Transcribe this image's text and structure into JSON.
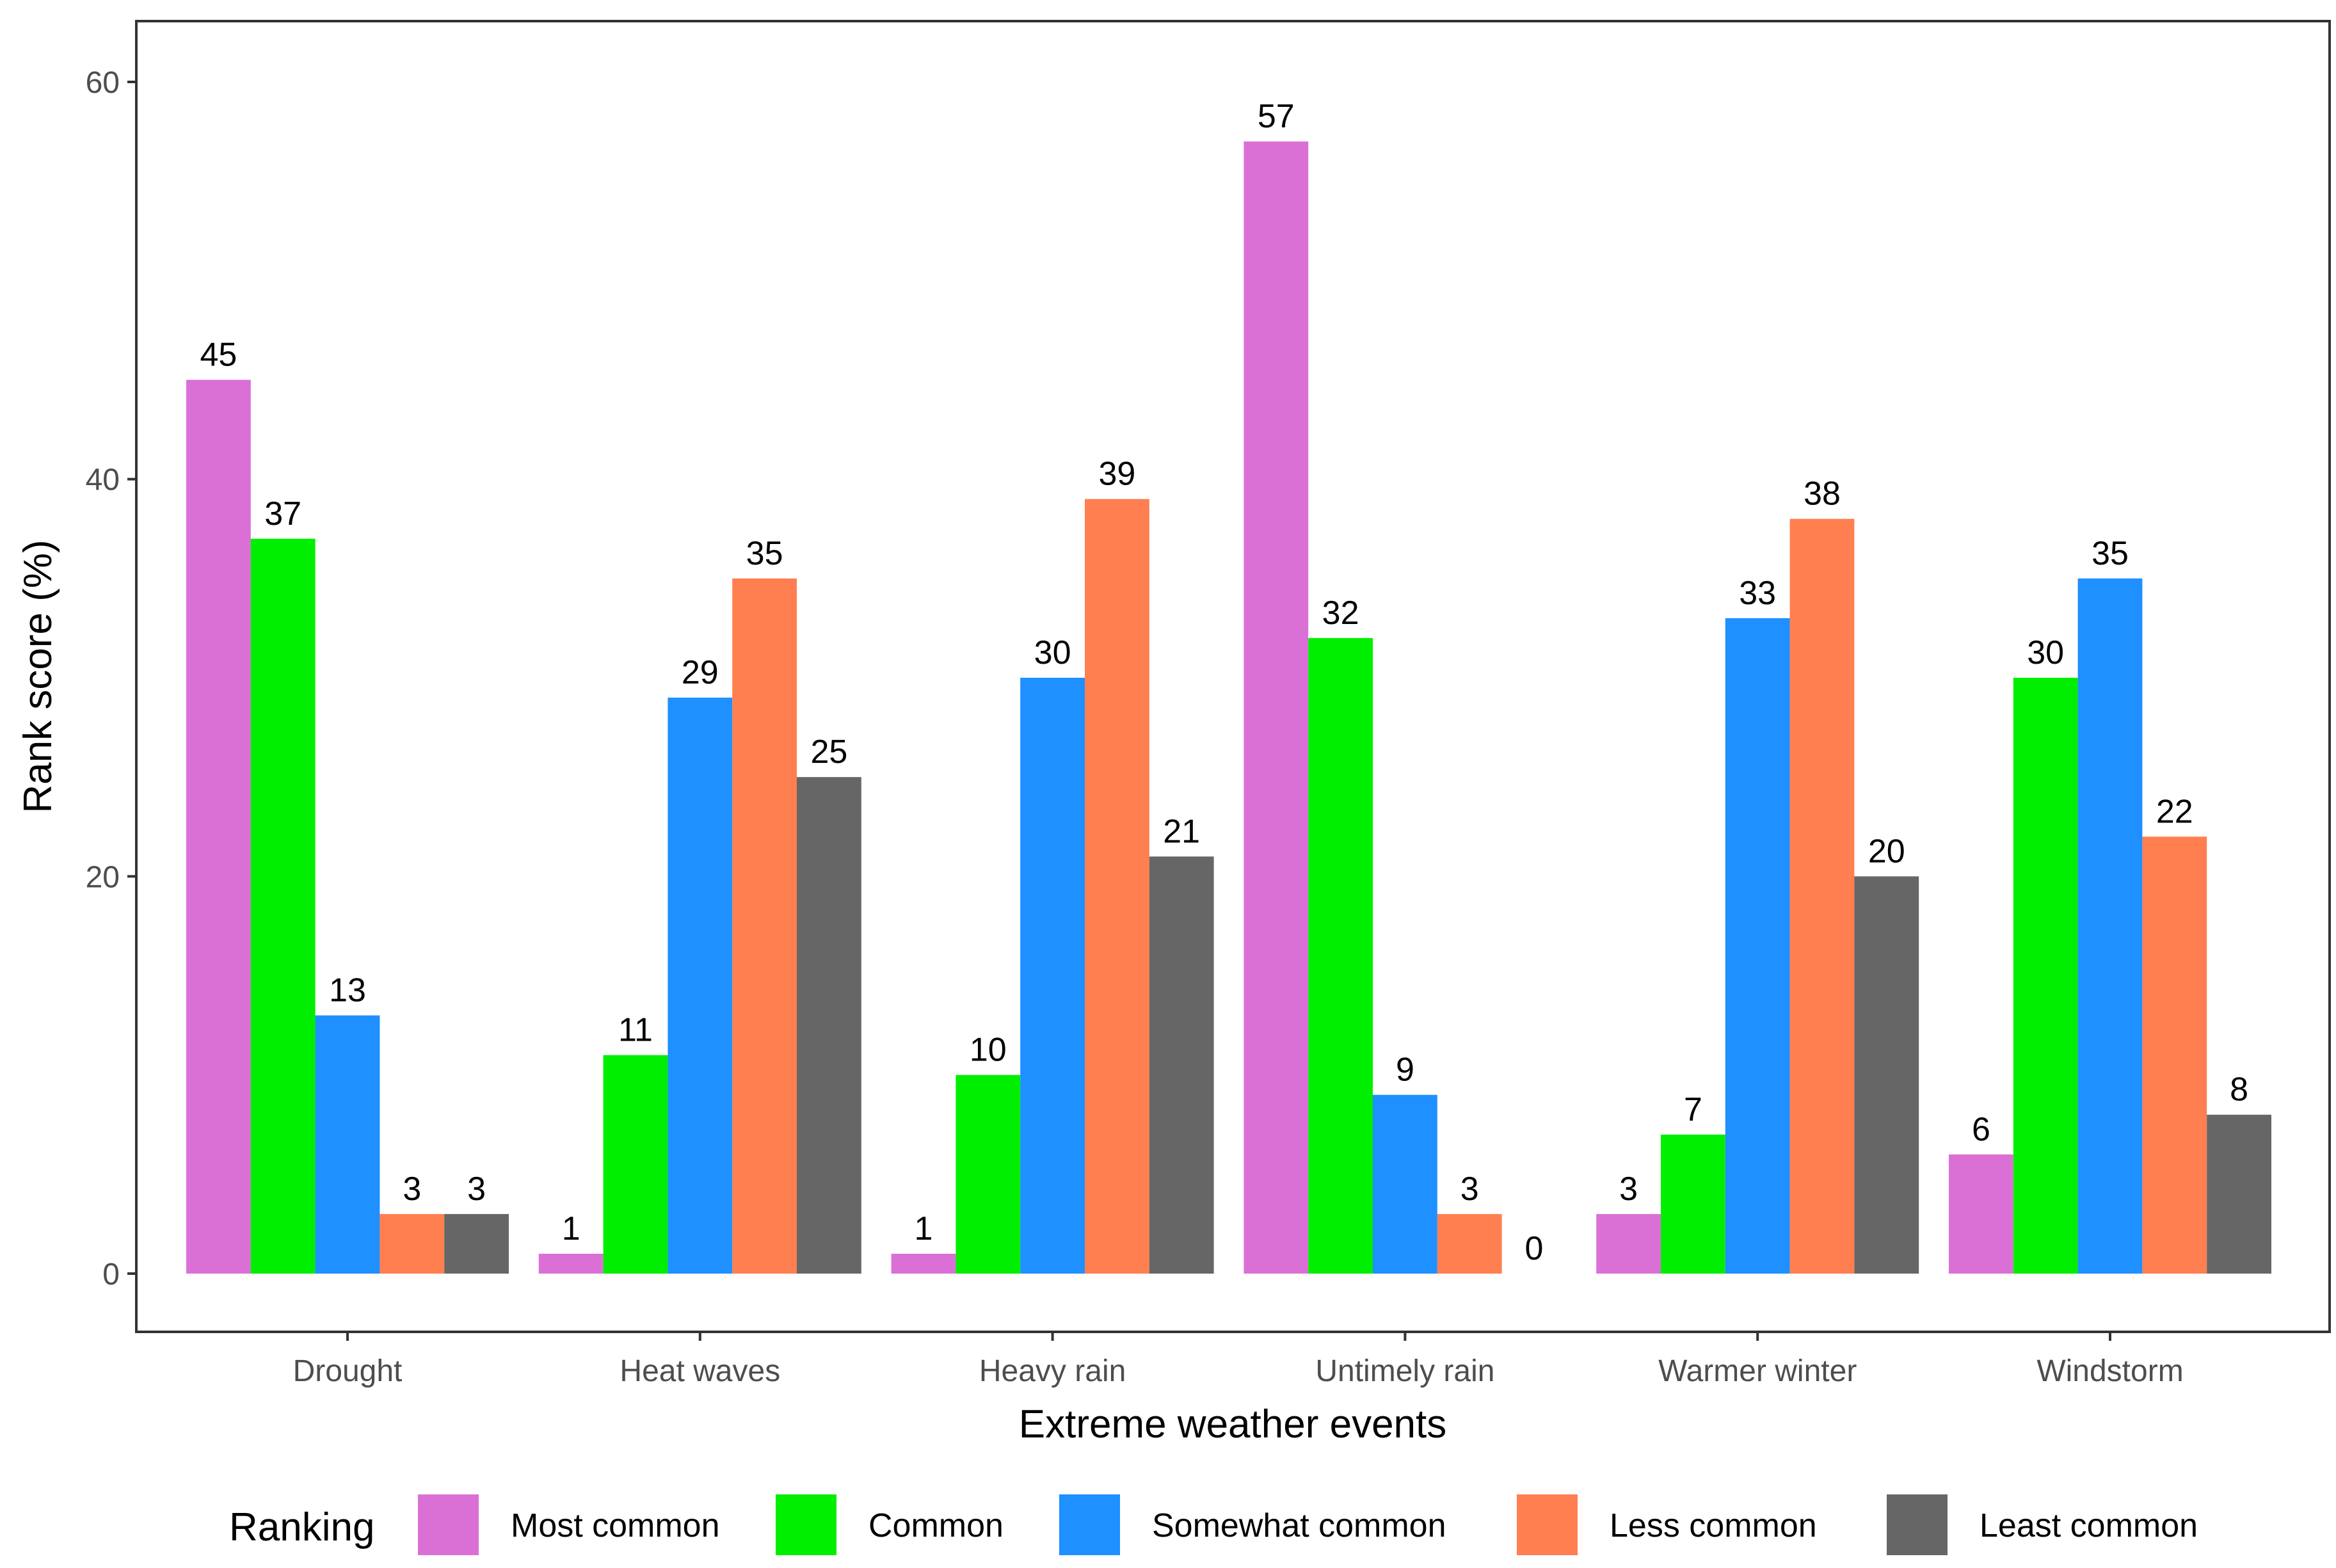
{
  "chart_data": {
    "type": "bar",
    "title": "",
    "xlabel": "Extreme weather events",
    "ylabel": "Rank score (%)",
    "ylim": [
      0,
      62
    ],
    "yticks": [
      0,
      20,
      40,
      60
    ],
    "grid": false,
    "legend_position": "bottom",
    "legend_title": "Ranking",
    "categories": [
      "Drought",
      "Heat waves",
      "Heavy rain",
      "Untimely rain",
      "Warmer winter",
      "Windstorm"
    ],
    "series": [
      {
        "name": "Most common",
        "color": "#DA70D6",
        "values": [
          45,
          1,
          1,
          57,
          3,
          6
        ]
      },
      {
        "name": "Common",
        "color": "#00EE00",
        "values": [
          37,
          11,
          10,
          32,
          7,
          30
        ]
      },
      {
        "name": "Somewhat common",
        "color": "#1E90FF",
        "values": [
          13,
          29,
          30,
          9,
          33,
          35
        ]
      },
      {
        "name": "Less common",
        "color": "#FF7F50",
        "values": [
          3,
          35,
          39,
          3,
          38,
          22
        ]
      },
      {
        "name": "Least common",
        "color": "#666666",
        "values": [
          3,
          25,
          21,
          0,
          20,
          8
        ]
      }
    ]
  }
}
